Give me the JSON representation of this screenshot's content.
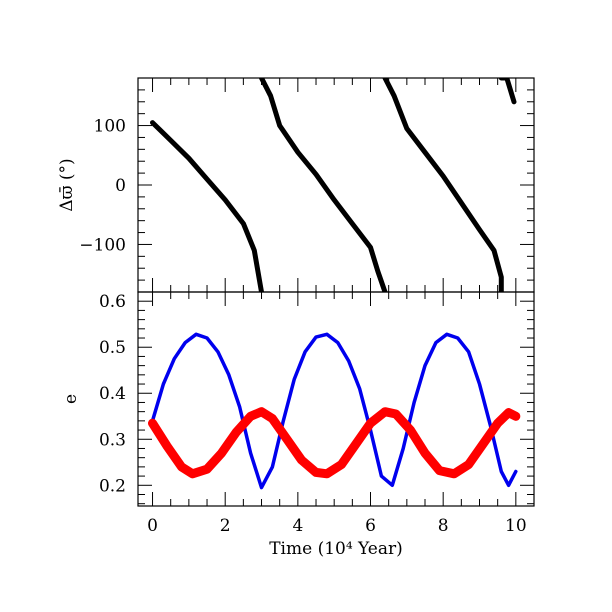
{
  "chart_data": [
    {
      "type": "line",
      "xlabel": "Time (10⁴ Year)",
      "ylabel": "Δϖ̄ (°)",
      "xlim": [
        -0.4,
        10.5
      ],
      "ylim": [
        -180,
        180
      ],
      "xticks": [
        0,
        2,
        4,
        6,
        8,
        10
      ],
      "yticks": [
        -100,
        0,
        100
      ],
      "ytick_labels": [
        "−100",
        "0",
        "100"
      ],
      "grid": false,
      "series": [
        {
          "color": "#000000",
          "x": [
            0.0,
            0.5,
            1.0,
            1.5,
            2.0,
            2.5,
            2.8,
            3.0,
            3.25,
            3.5,
            4.0,
            4.5,
            5.0,
            5.5,
            6.0,
            6.2,
            6.4,
            6.65,
            7.0,
            7.5,
            8.0,
            8.5,
            9.0,
            9.4,
            9.6,
            9.75,
            9.95
          ],
          "y": [
            105,
            75,
            45,
            10,
            -25,
            -65,
            -110,
            -180,
            150,
            100,
            55,
            18,
            -25,
            -65,
            -105,
            -145,
            -180,
            150,
            95,
            55,
            15,
            -30,
            -75,
            -110,
            -155,
            180,
            140
          ]
        }
      ]
    },
    {
      "type": "line",
      "xlabel": "Time (10⁴ Year)",
      "ylabel": "e",
      "xlim": [
        -0.4,
        10.5
      ],
      "ylim": [
        0.155,
        0.62
      ],
      "xticks": [
        0,
        2,
        4,
        6,
        8,
        10
      ],
      "yticks": [
        0.2,
        0.3,
        0.4,
        0.5,
        0.6
      ],
      "ytick_labels": [
        "0.2",
        "0.3",
        "0.4",
        "0.5",
        "0.6"
      ],
      "grid": false,
      "series": [
        {
          "color": "#0000ee",
          "x": [
            0.0,
            0.3,
            0.6,
            0.9,
            1.2,
            1.5,
            1.8,
            2.1,
            2.4,
            2.7,
            3.0,
            3.3,
            3.6,
            3.9,
            4.2,
            4.5,
            4.8,
            5.1,
            5.4,
            5.7,
            6.0,
            6.3,
            6.6,
            6.9,
            7.2,
            7.5,
            7.8,
            8.1,
            8.4,
            8.7,
            9.0,
            9.3,
            9.6,
            9.8,
            10.0
          ],
          "y": [
            0.34,
            0.42,
            0.475,
            0.51,
            0.528,
            0.52,
            0.49,
            0.44,
            0.37,
            0.27,
            0.195,
            0.24,
            0.34,
            0.43,
            0.49,
            0.522,
            0.528,
            0.51,
            0.47,
            0.41,
            0.32,
            0.22,
            0.2,
            0.28,
            0.38,
            0.46,
            0.51,
            0.528,
            0.52,
            0.49,
            0.42,
            0.33,
            0.23,
            0.2,
            0.23
          ]
        },
        {
          "color": "#ff0000",
          "x": [
            0.0,
            0.4,
            0.8,
            1.1,
            1.5,
            1.9,
            2.3,
            2.7,
            3.0,
            3.3,
            3.7,
            4.1,
            4.5,
            4.8,
            5.2,
            5.6,
            6.0,
            6.4,
            6.7,
            7.1,
            7.5,
            7.9,
            8.3,
            8.7,
            9.1,
            9.5,
            9.8,
            10.0
          ],
          "y": [
            0.335,
            0.285,
            0.24,
            0.225,
            0.235,
            0.27,
            0.315,
            0.35,
            0.36,
            0.345,
            0.3,
            0.255,
            0.228,
            0.225,
            0.245,
            0.29,
            0.335,
            0.36,
            0.355,
            0.32,
            0.27,
            0.232,
            0.225,
            0.245,
            0.29,
            0.335,
            0.358,
            0.35
          ]
        }
      ]
    }
  ]
}
